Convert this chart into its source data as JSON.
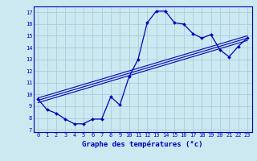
{
  "xlabel": "Graphe des températures (°c)",
  "bg_color": "#cce8f0",
  "grid_color": "#aaccdd",
  "line_color": "#0000bb",
  "xlim": [
    -0.5,
    23.5
  ],
  "ylim": [
    6.8,
    17.5
  ],
  "xticks": [
    0,
    1,
    2,
    3,
    4,
    5,
    6,
    7,
    8,
    9,
    10,
    11,
    12,
    13,
    14,
    15,
    16,
    17,
    18,
    19,
    20,
    21,
    22,
    23
  ],
  "yticks": [
    7,
    8,
    9,
    10,
    11,
    12,
    13,
    14,
    15,
    16,
    17
  ],
  "curve1_x": [
    0,
    1,
    2,
    3,
    4,
    5,
    6,
    7,
    8,
    9,
    10,
    11,
    12,
    13,
    14,
    15,
    16,
    17,
    18,
    19,
    20,
    21,
    22,
    23
  ],
  "curve1_y": [
    9.6,
    8.7,
    8.4,
    7.9,
    7.5,
    7.5,
    7.9,
    7.9,
    9.8,
    9.1,
    11.5,
    13.0,
    16.1,
    17.1,
    17.1,
    16.1,
    16.0,
    15.2,
    14.8,
    15.1,
    13.8,
    13.2,
    14.1,
    14.8
  ],
  "trend_lines": [
    {
      "x": [
        0,
        23
      ],
      "y": [
        9.3,
        14.6
      ]
    },
    {
      "x": [
        0,
        23
      ],
      "y": [
        9.5,
        14.8
      ]
    },
    {
      "x": [
        0,
        23
      ],
      "y": [
        9.7,
        15.0
      ]
    }
  ]
}
